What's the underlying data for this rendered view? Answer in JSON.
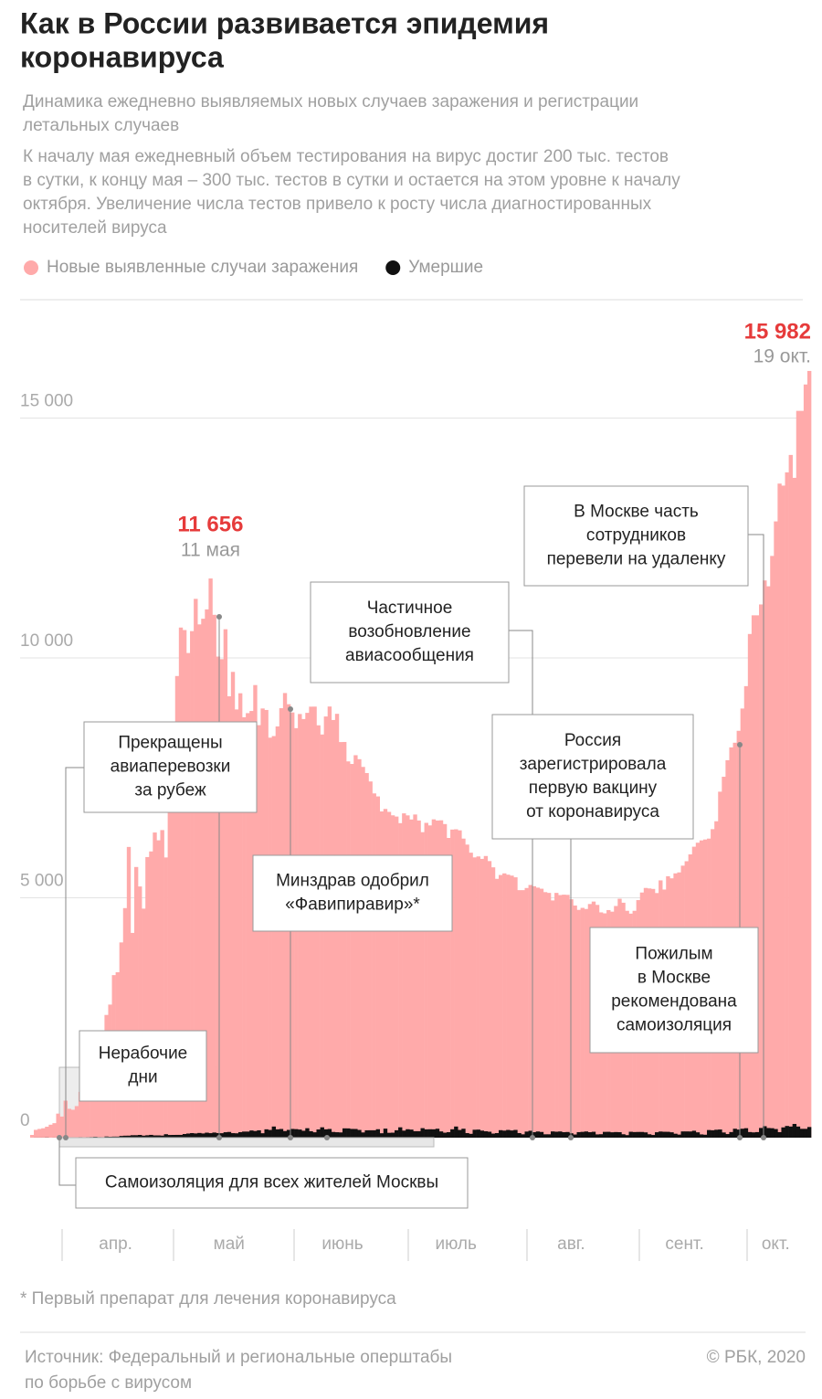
{
  "chart_data": {
    "type": "bar",
    "title": [
      "Как в России развивается эпидемия",
      "коронавируса"
    ],
    "subtitle": [
      "Динамика ежедневно выявляемых новых случаев заражения и регистрации",
      "летальных случаев"
    ],
    "description": [
      "К началу мая ежедневный объем тестирования на вирус достиг 200 тыс. тестов",
      "в сутки, к концу мая – 300 тыс. тестов в сутки и остается на этом уровне к началу",
      "октября. Увеличение числа тестов привело к росту числа диагностированных",
      "носителей вируса"
    ],
    "series": [
      {
        "name": "Новые выявленные случаи заражения",
        "color": "#ffaaaa",
        "values": [
          57,
          163,
          182,
          196,
          228,
          270,
          302,
          501,
          440,
          771,
          601,
          582,
          658,
          954,
          1154,
          1175,
          1459,
          1786,
          1667,
          2186,
          2558,
          2774,
          3388,
          3448,
          4070,
          4785,
          6060,
          4268,
          5642,
          5236,
          4774,
          5849,
          5966,
          6361,
          6198,
          6411,
          5841,
          7099,
          7933,
          9623,
          10633,
          10581,
          10102,
          10559,
          11231,
          10699,
          10817,
          11012,
          11656,
          10899,
          10028,
          9974,
          10598,
          9200,
          9709,
          8926,
          9263,
          8764,
          8849,
          8894,
          9434,
          8599,
          8946,
          8915,
          8338,
          8371,
          8572,
          8952,
          9268,
          9035,
          8863,
          8536,
          8831,
          8726,
          8855,
          8984,
          8985,
          8595,
          8404,
          8779,
          8987,
          8706,
          8835,
          8246,
          8248,
          7843,
          7790,
          7972,
          7889,
          7728,
          7600,
          7425,
          7176,
          7113,
          6800,
          6852,
          6791,
          6719,
          6693,
          6556,
          6760,
          6718,
          6632,
          6736,
          6611,
          6368,
          6562,
          6509,
          6635,
          6611,
          6615,
          6537,
          6248,
          6422,
          6428,
          6406,
          6234,
          6109,
          5940,
          5842,
          5862,
          5811,
          5871,
          5765,
          5635,
          5395,
          5475,
          5509,
          5482,
          5462,
          5427,
          5159,
          5159,
          5204,
          5267,
          5241,
          5212,
          5189,
          5118,
          5102,
          4945,
          5102,
          5057,
          5065,
          5061,
          4969,
          4839,
          4748,
          4790,
          4767,
          4870,
          4921,
          4852,
          4696,
          4676,
          4744,
          4711,
          4829,
          4980,
          4897,
          4729,
          4670,
          4729,
          4952,
          5110,
          5205,
          5195,
          5185,
          5099,
          5363,
          5172,
          5449,
          5406,
          5509,
          5529,
          5670,
          5762,
          5905,
          6065,
          6148,
          6196,
          6215,
          6234,
          6431,
          6595,
          7212,
          7523,
          7867,
          8135,
          8232,
          8481,
          8945,
          9412,
          10499,
          10888,
          10888,
          11115,
          11615,
          11493,
          12126,
          12846,
          13634,
          13592,
          13868,
          14231,
          13754,
          15150,
          15150,
          15700,
          15982
        ],
        "value_labels": [
          null,
          null,
          null,
          null,
          null,
          null,
          null,
          null,
          null,
          null,
          null,
          null,
          null,
          null,
          null,
          null,
          null,
          null,
          null,
          null,
          null,
          null,
          null,
          null,
          null,
          null,
          null,
          null,
          null,
          null,
          null,
          null,
          null,
          null,
          null,
          null,
          null,
          null,
          null,
          null,
          null,
          null,
          null,
          null,
          null,
          null,
          null,
          null,
          "11 656",
          null,
          null,
          null,
          null,
          null,
          null,
          null,
          null,
          null,
          null,
          null,
          null,
          null,
          null,
          null,
          null,
          null,
          null,
          null,
          null,
          null,
          null,
          null,
          null,
          null,
          null,
          null,
          null,
          null,
          null,
          null,
          null,
          null,
          null,
          null,
          null,
          null,
          null,
          null,
          null,
          null,
          null,
          null,
          null,
          null,
          null,
          null,
          null,
          null,
          null,
          null,
          null,
          null,
          null,
          null,
          null,
          null,
          null,
          null,
          null,
          null,
          null,
          null,
          null,
          null,
          null,
          null,
          null,
          null,
          null,
          null,
          null,
          null,
          null,
          null,
          null,
          null,
          null,
          null,
          null,
          null,
          null,
          null,
          null,
          null,
          null,
          null,
          null,
          null,
          null,
          null,
          null,
          null,
          null,
          null,
          null,
          null,
          null,
          null,
          null,
          null,
          null,
          null,
          null,
          null,
          null,
          null,
          null,
          null,
          null,
          null,
          null,
          null,
          null,
          null,
          null,
          null,
          null,
          null,
          null,
          null,
          null,
          null,
          null,
          null,
          null,
          null,
          null,
          null,
          null,
          null,
          null,
          null,
          null,
          null,
          null,
          null,
          null,
          null,
          null,
          null,
          null,
          null,
          null,
          null,
          null,
          null,
          null,
          null,
          null,
          null,
          null,
          null,
          null,
          null,
          null,
          null,
          null,
          null,
          null,
          "15 982"
        ],
        "date_labels": [
          null,
          null,
          null,
          null,
          null,
          null,
          null,
          null,
          null,
          null,
          null,
          null,
          null,
          null,
          null,
          null,
          null,
          null,
          null,
          null,
          null,
          null,
          null,
          null,
          null,
          null,
          null,
          null,
          null,
          null,
          null,
          null,
          null,
          null,
          null,
          null,
          null,
          null,
          null,
          null,
          null,
          null,
          null,
          null,
          null,
          null,
          null,
          null,
          "11 мая",
          null,
          null,
          null,
          null,
          null,
          null,
          null,
          null,
          null,
          null,
          null,
          null,
          null,
          null,
          null,
          null,
          null,
          null,
          null,
          null,
          null,
          null,
          null,
          null,
          null,
          null,
          null,
          null,
          null,
          null,
          null,
          null,
          null,
          null,
          null,
          null,
          null,
          null,
          null,
          null,
          null,
          null,
          null,
          null,
          null,
          null,
          null,
          null,
          null,
          null,
          null,
          null,
          null,
          null,
          null,
          null,
          null,
          null,
          null,
          null,
          null,
          null,
          null,
          null,
          null,
          null,
          null,
          null,
          null,
          null,
          null,
          null,
          null,
          null,
          null,
          null,
          null,
          null,
          null,
          null,
          null,
          null,
          null,
          null,
          null,
          null,
          null,
          null,
          null,
          null,
          null,
          null,
          null,
          null,
          null,
          null,
          null,
          null,
          null,
          null,
          null,
          null,
          null,
          null,
          null,
          null,
          null,
          null,
          null,
          null,
          null,
          null,
          null,
          null,
          null,
          null,
          null,
          null,
          null,
          null,
          null,
          null,
          null,
          null,
          null,
          null,
          null,
          null,
          null,
          null,
          null,
          null,
          null,
          null,
          null,
          null,
          null,
          null,
          null,
          null,
          null,
          null,
          null,
          null,
          null,
          null,
          null,
          null,
          null,
          null,
          null,
          null,
          null,
          null,
          null,
          null,
          null,
          null,
          null,
          null,
          "19 окт."
        ]
      },
      {
        "name": "Умершие",
        "color": "#111111",
        "values": [
          0,
          1,
          1,
          1,
          3,
          0,
          1,
          0,
          2,
          4,
          2,
          4,
          4,
          11,
          1,
          11,
          13,
          18,
          12,
          11,
          24,
          19,
          22,
          22,
          36,
          41,
          42,
          51,
          51,
          57,
          42,
          50,
          58,
          47,
          47,
          43,
          72,
          56,
          57,
          58,
          58,
          76,
          86,
          95,
          88,
          98,
          88,
          104,
          94,
          107,
          96,
          93,
          113,
          119,
          94,
          91,
          115,
          127,
          127,
          150,
          139,
          153,
          92,
          174,
          161,
          232,
          174,
          181,
          138,
          162,
          182,
          178,
          169,
          144,
          197,
          134,
          112,
          171,
          216,
          174,
          181,
          119,
          113,
          109,
          194,
          193,
          182,
          181,
          161,
          109,
          153,
          154,
          154,
          176,
          92,
          188,
          101,
          104,
          154,
          216,
          147,
          176,
          168,
          135,
          135,
          198,
          173,
          175,
          174,
          186,
          130,
          104,
          114,
          175,
          232,
          161,
          186,
          95,
          80,
          165,
          168,
          147,
          133,
          124,
          85,
          95,
          156,
          147,
          161,
          150,
          161,
          95,
          70,
          127,
          144,
          114,
          129,
          119,
          70,
          70,
          130,
          124,
          129,
          114,
          118,
          92,
          66,
          115,
          121,
          129,
          114,
          123,
          68,
          72,
          121,
          122,
          112,
          117,
          114,
          71,
          53,
          123,
          117,
          119,
          119,
          110,
          71,
          56,
          113,
          128,
          123,
          122,
          112,
          82,
          64,
          130,
          130,
          129,
          144,
          111,
          68,
          61,
          159,
          154,
          165,
          170,
          108,
          75,
          117,
          186,
          169,
          186,
          197,
          117,
          110,
          116,
          202,
          239,
          201,
          197,
          180,
          115,
          214,
          244,
          232,
          286,
          232,
          184,
          184,
          222
        ]
      }
    ],
    "ylim": [
      0,
      16500
    ],
    "yticks": [
      {
        "value": 0,
        "label": "0"
      },
      {
        "value": 5000,
        "label": "5 000"
      },
      {
        "value": 10000,
        "label": "10 000"
      },
      {
        "value": 15000,
        "label": "15 000"
      }
    ],
    "xlim": [
      0,
      209
    ],
    "xticks": [
      {
        "value": 22.5,
        "label": "апр."
      },
      {
        "value": 53,
        "label": "май"
      },
      {
        "value": 83.5,
        "label": "июнь"
      },
      {
        "value": 114,
        "label": "июль"
      },
      {
        "value": 145,
        "label": "авг."
      },
      {
        "value": 175.5,
        "label": "сент."
      },
      {
        "value": 200,
        "label": "окт."
      }
    ],
    "grid": true,
    "annotations": [
      {
        "lines": [
          "Нерабочие",
          "дни"
        ]
      },
      {
        "lines": [
          "Самоизоляция для всех жителей Москвы"
        ]
      },
      {
        "lines": [
          "Прекращены",
          "авиаперевозки",
          "за рубеж"
        ]
      },
      {
        "lines": [
          "Минздрав одобрил",
          "«Фавипиравир»*"
        ]
      },
      {
        "lines": [
          "Частичное",
          "возобновление",
          "авиасообщения"
        ]
      },
      {
        "lines": [
          "Россия",
          "зарегистрировала",
          "первую вакцину",
          "от коронавируса"
        ]
      },
      {
        "lines": [
          "Пожилым",
          "в Москве",
          "рекомендована",
          "самоизоляция"
        ]
      },
      {
        "lines": [
          "В Москве часть",
          "сотрудников",
          "перевели на удаленку"
        ]
      }
    ],
    "footnote": "* Первый препарат для лечения коронавируса",
    "source": [
      "Источник: Федеральный и региональные оперштабы",
      "по борьбе с вирусом"
    ],
    "copyright": "© РБК, 2020"
  }
}
